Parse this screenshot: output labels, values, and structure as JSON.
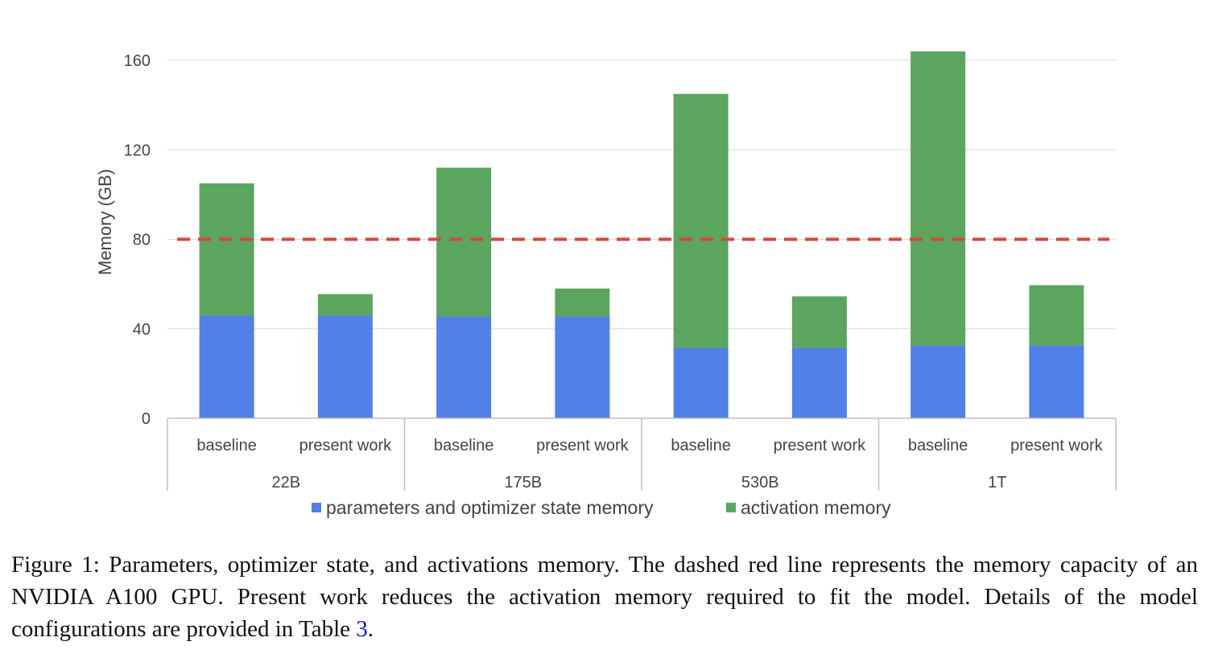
{
  "chart_data": {
    "type": "bar",
    "stacked": true,
    "ylabel": "Memory (GB)",
    "ylim": [
      0,
      160
    ],
    "yticks": [
      0,
      40,
      80,
      120,
      160
    ],
    "grid": true,
    "legend_position": "bottom",
    "groups": [
      "22B",
      "175B",
      "530B",
      "1T"
    ],
    "categories": [
      "baseline",
      "present work",
      "baseline",
      "present work",
      "baseline",
      "present work",
      "baseline",
      "present work"
    ],
    "category_group": [
      0,
      0,
      1,
      1,
      2,
      2,
      3,
      3
    ],
    "series": [
      {
        "name": "parameters and optimizer state memory",
        "color": "#5080e8",
        "values": [
          46,
          46,
          45.5,
          45.5,
          31.5,
          31.5,
          32.5,
          32.5
        ]
      },
      {
        "name": "activation memory",
        "color": "#5ba55f",
        "values": [
          59,
          9.5,
          66.5,
          12.5,
          113.5,
          23,
          131.5,
          27
        ]
      }
    ],
    "reference_line": {
      "value": 80,
      "color": "#d9473a",
      "style": "dashed"
    }
  },
  "caption": {
    "text": "Figure 1: Parameters, optimizer state, and activations memory. The dashed red line represents the memory capacity of an NVIDIA A100 GPU. Present work reduces the activation memory required to fit the model. Details of the model configurations are provided in Table ",
    "ref": "3",
    "end": "."
  }
}
